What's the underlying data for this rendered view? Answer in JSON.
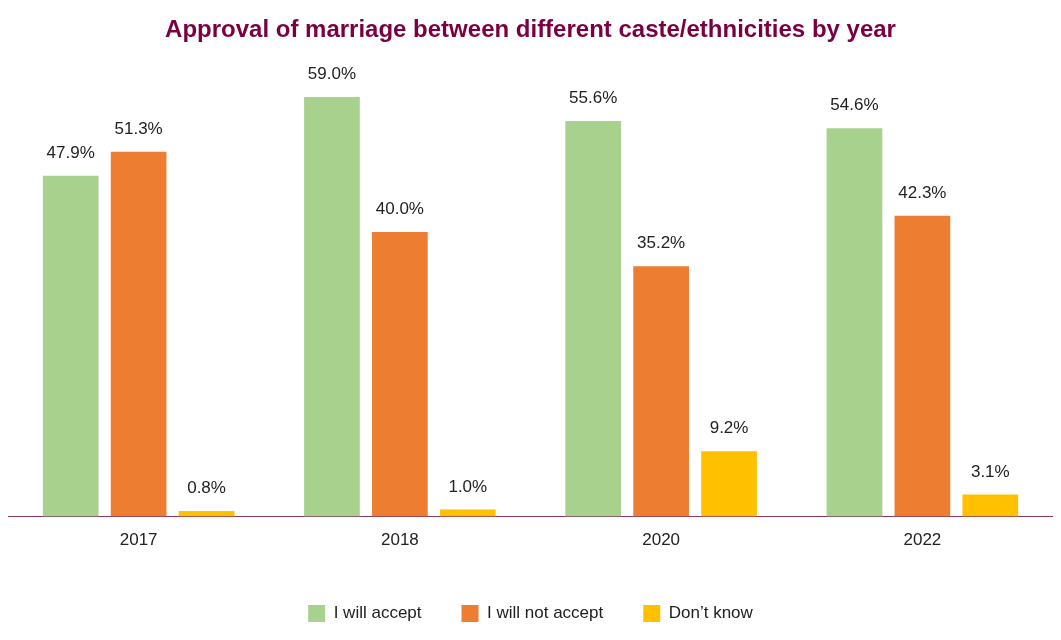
{
  "chart_data": {
    "type": "bar",
    "title": "Approval of marriage between different caste/ethnicities by year",
    "categories": [
      "2017",
      "2018",
      "2020",
      "2022"
    ],
    "series": [
      {
        "name": "I will accept",
        "color": "#a9d18e",
        "values": [
          47.9,
          59.0,
          55.6,
          54.6
        ],
        "value_labels": [
          "47.9%",
          "59.0%",
          "55.6%",
          "54.6%"
        ]
      },
      {
        "name": "I will not accept",
        "color": "#ed7d31",
        "values": [
          51.3,
          40.0,
          35.2,
          42.3
        ],
        "value_labels": [
          "51.3%",
          "40.0%",
          "35.2%",
          "42.3%"
        ]
      },
      {
        "name": "Don’t know",
        "color": "#ffc000",
        "values": [
          0.8,
          1.0,
          9.2,
          3.1
        ],
        "value_labels": [
          "0.8%",
          "1.0%",
          "9.2%",
          "3.1%"
        ]
      }
    ],
    "legend": "bottom",
    "grid": false,
    "tick_labels": "x"
  }
}
